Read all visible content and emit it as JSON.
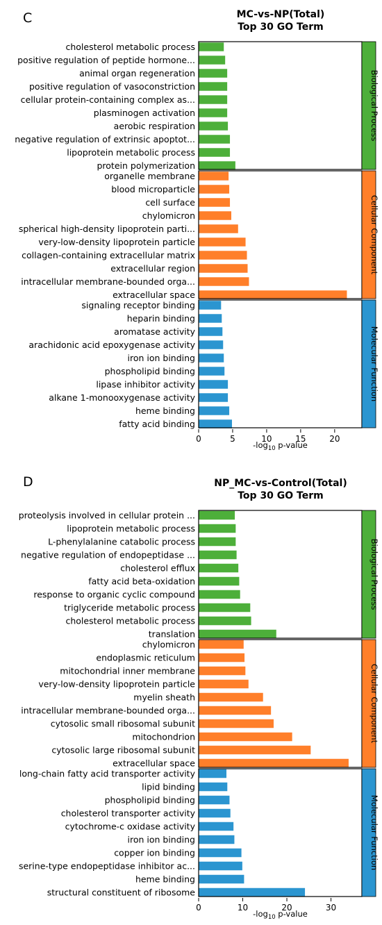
{
  "chart_data": [
    {
      "type": "bar",
      "orientation": "horizontal",
      "panel_letter": "C",
      "title": "MC-vs-NP(Total)",
      "subtitle": "Top 30 GO Term",
      "xlabel": "-log10 p-value",
      "xlabel_parts": {
        "pre": "-log",
        "sub": "10",
        "post": " p-value"
      },
      "xlim": [
        0,
        24
      ],
      "xticks": [
        0,
        5,
        10,
        15,
        20
      ],
      "groups": [
        {
          "name": "Biological Process",
          "color": "#4daf3a",
          "categories": [
            "cholesterol metabolic process",
            "positive regulation of peptide hormone...",
            "animal organ regeneration",
            "positive regulation of vasoconstriction",
            "cellular protein-containing complex as...",
            "plasminogen activation",
            "aerobic respiration",
            "negative regulation of extrinsic apoptot...",
            "lipoprotein metabolic process",
            "protein polymerization"
          ],
          "values": [
            3.7,
            3.9,
            4.2,
            4.2,
            4.2,
            4.2,
            4.3,
            4.6,
            4.6,
            5.4
          ]
        },
        {
          "name": "Cellular Component",
          "color": "#ff7f2a",
          "categories": [
            "organelle membrane",
            "blood microparticle",
            "cell surface",
            "chylomicron",
            "spherical high-density lipoprotein parti...",
            "very-low-density lipoprotein particle",
            "collagen-containing extracellular matrix",
            "extracellular region",
            "intracellular membrane-bounded orga...",
            "extracellular space"
          ],
          "values": [
            4.4,
            4.5,
            4.6,
            4.8,
            5.8,
            6.9,
            7.1,
            7.2,
            7.4,
            21.8
          ]
        },
        {
          "name": "Molecular Function",
          "color": "#2b95d0",
          "categories": [
            "signaling receptor binding",
            "heparin binding",
            "aromatase activity",
            "arachidonic acid epoxygenase activity",
            "iron ion binding",
            "phospholipid binding",
            "lipase inhibitor activity",
            "alkane 1-monooxygenase activity",
            "heme binding",
            "fatty acid binding"
          ],
          "values": [
            3.3,
            3.4,
            3.5,
            3.6,
            3.7,
            3.8,
            4.3,
            4.3,
            4.5,
            4.9
          ]
        }
      ]
    },
    {
      "type": "bar",
      "orientation": "horizontal",
      "panel_letter": "D",
      "title": "NP_MC-vs-Control(Total)",
      "subtitle": "Top 30 GO Term",
      "xlabel": "-log10 p-value",
      "xlabel_parts": {
        "pre": "-log",
        "sub": "10",
        "post": " p-value"
      },
      "xlim": [
        0,
        37
      ],
      "xticks": [
        0,
        10,
        20,
        30
      ],
      "groups": [
        {
          "name": "Biological Process",
          "color": "#4daf3a",
          "categories": [
            "proteolysis involved in cellular protein ...",
            "lipoprotein metabolic process",
            "L-phenylalanine catabolic process",
            "negative regulation of endopeptidase ...",
            "cholesterol efflux",
            "fatty acid beta-oxidation",
            "response to organic cyclic compound",
            "triglyceride metabolic process",
            "cholesterol metabolic process",
            "translation"
          ],
          "values": [
            8.2,
            8.4,
            8.4,
            8.6,
            9.0,
            9.2,
            9.4,
            11.7,
            11.9,
            17.6
          ]
        },
        {
          "name": "Cellular Component",
          "color": "#ff7f2a",
          "categories": [
            "chylomicron",
            "endoplasmic reticulum",
            "mitochondrial inner membrane",
            "very-low-density lipoprotein particle",
            "myelin sheath",
            "intracellular membrane-bounded orga...",
            "cytosolic small ribosomal subunit",
            "mitochondrion",
            "cytosolic large ribosomal subunit",
            "extracellular space"
          ],
          "values": [
            10.2,
            10.4,
            10.6,
            11.3,
            14.6,
            16.4,
            17.0,
            21.2,
            25.4,
            34.0
          ]
        },
        {
          "name": "Molecular Function",
          "color": "#2b95d0",
          "categories": [
            "long-chain fatty acid transporter activity",
            "lipid binding",
            "phospholipid binding",
            "cholesterol transporter activity",
            "cytochrome-c oxidase activity",
            "iron ion binding",
            "copper ion binding",
            "serine-type endopeptidase inhibitor ac...",
            "heme binding",
            "structural constituent of ribosome"
          ],
          "values": [
            6.3,
            6.5,
            7.0,
            7.2,
            7.9,
            8.1,
            9.7,
            9.9,
            10.3,
            24.1
          ]
        }
      ]
    }
  ]
}
